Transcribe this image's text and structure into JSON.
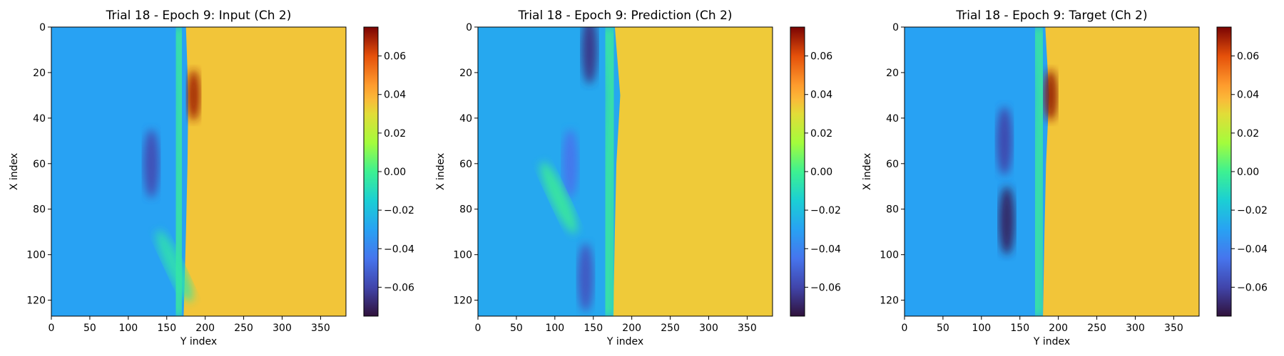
{
  "chart_data": [
    {
      "type": "heatmap",
      "title": "Trial 18 - Epoch 9: Input (Ch 2)",
      "xlabel": "Y index",
      "ylabel": "X index",
      "xlim": [
        0,
        383
      ],
      "ylim": [
        127,
        0
      ],
      "xticks": [
        0,
        50,
        100,
        150,
        200,
        250,
        300,
        350
      ],
      "yticks": [
        0,
        20,
        40,
        60,
        80,
        100,
        120
      ],
      "colormap": "turbo",
      "colorbar": {
        "range": [
          -0.075,
          0.075
        ],
        "ticks": [
          -0.06,
          -0.04,
          -0.02,
          0.0,
          0.02,
          0.04,
          0.06
        ],
        "tick_labels": [
          "−0.06",
          "−0.04",
          "−0.02",
          "0.00",
          "0.02",
          "0.04",
          "0.06"
        ]
      },
      "field": {
        "left_value": -0.03,
        "right_value": 0.035,
        "front": [
          [
            0,
            175
          ],
          [
            30,
            178
          ],
          [
            60,
            177
          ],
          [
            90,
            175
          ],
          [
            127,
            172
          ]
        ],
        "features": [
          {
            "kind": "low",
            "x": 60,
            "y": 130,
            "value": -0.058
          },
          {
            "kind": "high",
            "x": 30,
            "y": 185,
            "value": 0.07
          },
          {
            "kind": "streak",
            "x": 105,
            "y": 160,
            "value": -0.005
          }
        ]
      }
    },
    {
      "type": "heatmap",
      "title": "Trial 18 - Epoch 9: Prediction (Ch 2)",
      "xlabel": "Y index",
      "ylabel": "X index",
      "xlim": [
        0,
        383
      ],
      "ylim": [
        127,
        0
      ],
      "xticks": [
        0,
        50,
        100,
        150,
        200,
        250,
        300,
        350
      ],
      "yticks": [
        0,
        20,
        40,
        60,
        80,
        100,
        120
      ],
      "colormap": "turbo",
      "colorbar": {
        "range": [
          -0.075,
          0.075
        ],
        "ticks": [
          -0.06,
          -0.04,
          -0.02,
          0.0,
          0.02,
          0.04,
          0.06
        ],
        "tick_labels": [
          "−0.06",
          "−0.04",
          "−0.02",
          "0.00",
          "0.02",
          "0.04",
          "0.06"
        ]
      },
      "field": {
        "left_value": -0.028,
        "right_value": 0.034,
        "front": [
          [
            0,
            178
          ],
          [
            30,
            185
          ],
          [
            60,
            180
          ],
          [
            90,
            178
          ],
          [
            127,
            176
          ]
        ],
        "features": [
          {
            "kind": "low",
            "x": 10,
            "y": 145,
            "value": -0.065
          },
          {
            "kind": "low",
            "x": 60,
            "y": 120,
            "value": -0.045
          },
          {
            "kind": "low",
            "x": 110,
            "y": 140,
            "value": -0.055
          },
          {
            "kind": "streak",
            "x": 75,
            "y": 105,
            "value": 0.0
          }
        ]
      }
    },
    {
      "type": "heatmap",
      "title": "Trial 18 - Epoch 9: Target (Ch 2)",
      "xlabel": "Y index",
      "ylabel": "X index",
      "xlim": [
        0,
        383
      ],
      "ylim": [
        127,
        0
      ],
      "xticks": [
        0,
        50,
        100,
        150,
        200,
        250,
        300,
        350
      ],
      "yticks": [
        0,
        20,
        40,
        60,
        80,
        100,
        120
      ],
      "colormap": "turbo",
      "colorbar": {
        "range": [
          -0.075,
          0.075
        ],
        "ticks": [
          -0.06,
          -0.04,
          -0.02,
          0.0,
          0.02,
          0.04,
          0.06
        ],
        "tick_labels": [
          "−0.06",
          "−0.04",
          "−0.02",
          "0.00",
          "0.02",
          "0.04",
          "0.06"
        ]
      },
      "field": {
        "left_value": -0.03,
        "right_value": 0.035,
        "front": [
          [
            0,
            183
          ],
          [
            30,
            188
          ],
          [
            60,
            184
          ],
          [
            90,
            182
          ],
          [
            127,
            180
          ]
        ],
        "features": [
          {
            "kind": "low",
            "x": 50,
            "y": 130,
            "value": -0.06
          },
          {
            "kind": "low",
            "x": 85,
            "y": 133,
            "value": -0.07
          },
          {
            "kind": "high",
            "x": 30,
            "y": 190,
            "value": 0.072
          }
        ]
      }
    }
  ]
}
